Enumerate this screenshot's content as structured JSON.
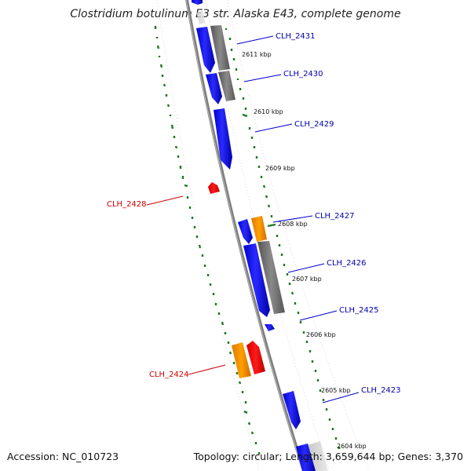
{
  "title": "Clostridium botulinum E3 str. Alaska E43, complete genome",
  "footer": {
    "accession": "Accession: NC_010723",
    "topology": "Topology: circular",
    "length": "Length: 3,659,644 bp",
    "genes": "Genes: 3,370"
  },
  "colors": {
    "backbone": "#8c8c8c",
    "forward_cds": "#0000ff",
    "reverse_cds": "#ff0000",
    "orange_feature": "#ff9900",
    "gray_feature": "#7a7a7a",
    "gc_ticks": "#1f7a1f",
    "label_forward": "#0000aa",
    "label_reverse": "#cc0000"
  },
  "scale_labels": [
    "2611 kbp",
    "2610 kbp",
    "2609 kbp",
    "2608 kbp",
    "2607 kbp",
    "2606 kbp",
    "2605 kbp",
    "2604 kbp"
  ],
  "gene_labels": {
    "CLH_2431": "CLH_2431",
    "CLH_2430": "CLH_2430",
    "CLH_2429": "CLH_2429",
    "CLH_2428": "CLH_2428",
    "CLH_2427": "CLH_2427",
    "CLH_2426": "CLH_2426",
    "CLH_2425": "CLH_2425",
    "CLH_2424": "CLH_2424",
    "CLH_2423": "CLH_2423"
  }
}
